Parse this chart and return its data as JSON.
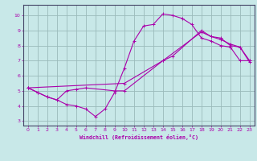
{
  "xlabel": "Windchill (Refroidissement éolien,°C)",
  "bg_color": "#c8e8e8",
  "line_color": "#aa00aa",
  "grid_color": "#9ababa",
  "axis_color": "#333366",
  "xlim": [
    -0.5,
    23.5
  ],
  "ylim": [
    2.7,
    10.7
  ],
  "xticks": [
    0,
    1,
    2,
    3,
    4,
    5,
    6,
    7,
    8,
    9,
    10,
    11,
    12,
    13,
    14,
    15,
    16,
    17,
    18,
    19,
    20,
    21,
    22,
    23
  ],
  "yticks": [
    3,
    4,
    5,
    6,
    7,
    8,
    9,
    10
  ],
  "curve1_x": [
    0,
    1,
    2,
    3,
    4,
    5,
    6,
    7,
    8,
    9,
    10,
    11,
    12,
    13,
    14,
    15,
    16,
    17,
    18,
    19,
    20,
    21,
    22,
    23
  ],
  "curve1_y": [
    5.2,
    4.9,
    4.6,
    4.4,
    4.1,
    4.0,
    3.8,
    3.3,
    3.8,
    4.9,
    6.5,
    8.3,
    9.3,
    9.4,
    10.1,
    10.0,
    9.8,
    9.4,
    8.5,
    8.3,
    8.0,
    7.9,
    7.0,
    7.0
  ],
  "curve2_x": [
    0,
    1,
    2,
    3,
    4,
    5,
    6,
    9,
    10,
    14,
    15,
    18,
    19,
    20,
    21,
    22,
    23
  ],
  "curve2_y": [
    5.2,
    4.9,
    4.6,
    4.4,
    5.0,
    5.1,
    5.2,
    5.0,
    5.0,
    7.0,
    7.3,
    9.0,
    8.6,
    8.5,
    8.0,
    7.9,
    7.0
  ],
  "curve3_x": [
    0,
    10,
    14,
    18,
    19,
    20,
    21,
    22,
    23
  ],
  "curve3_y": [
    5.2,
    5.5,
    7.0,
    8.9,
    8.6,
    8.4,
    8.1,
    7.9,
    6.9
  ]
}
